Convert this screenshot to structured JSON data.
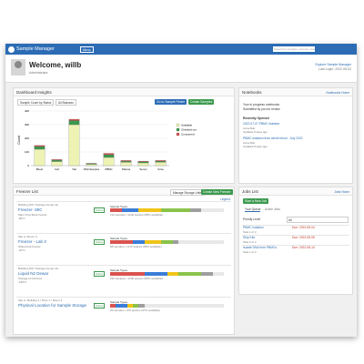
{
  "nav": {
    "brand": "Sample Manager",
    "menu": "Menu",
    "search": "Search for samples, sources, assays..."
  },
  "header": {
    "title": "Welcome, willb",
    "role": "Administrator",
    "explore": "Explore Sample Manager",
    "last_login": "Last Login: 2022-08-02"
  },
  "insights": {
    "title": "Dashboard Insights",
    "select_1": "Sample Count by Status",
    "select_2": "All Statuses",
    "button_finder": "Go to Sample Finder",
    "button_create": "Create Samples",
    "chart": {
      "type": "bar",
      "y_label": "Count",
      "categories": [
        "Blood",
        "Cell",
        "Vial",
        "DNA Samples",
        "PBMC",
        "Plasma",
        "Serum",
        "Urine"
      ],
      "series": [
        {
          "name": "Available",
          "color": "#eef3b4",
          "values": [
            120,
            30,
            300,
            10,
            60,
            25,
            20,
            25
          ]
        },
        {
          "name": "Checked out",
          "color": "#3c9a4f",
          "values": [
            20,
            10,
            30,
            5,
            20,
            8,
            8,
            8
          ]
        },
        {
          "name": "Consumed",
          "color": "#d9534f",
          "values": [
            8,
            5,
            10,
            2,
            10,
            5,
            5,
            5
          ]
        }
      ],
      "ylim": [
        0,
        400
      ],
      "yticks": [
        0,
        100,
        200,
        300,
        400
      ],
      "grid": true
    }
  },
  "notebooks": {
    "title": "Notebooks",
    "home": "Notebooks Home",
    "in_progress": "Your in progress notebooks",
    "submitted": "Submitted by you for review",
    "recent": "Recently Opened",
    "recent_items": [
      {
        "name": "2022-07-07 PBMC isolation",
        "author": "Anna Bob",
        "updated": "Updated 6 days ago"
      },
      {
        "name": "PBMC isolation from whole blood - July 2022",
        "author": "Anna Bob",
        "updated": "Updated 8 days ago"
      }
    ]
  },
  "freezers": {
    "title": "Freezer List",
    "manage": "Manage Storage Units",
    "create": "Create New Freezer",
    "legend": "Legend",
    "types_label": "Sample Types",
    "segment_colors": [
      "#d9534f",
      "#3b7dd8",
      "#f0c419",
      "#8bc34a",
      "#9e9e9e"
    ],
    "rows": [
      {
        "path": "Building 200 / Storage Center 4A",
        "name": "Freezer- 80C",
        "description": "Main Vinyl Book freezer",
        "status": "Active",
        "temp": "-80°C",
        "segments": [
          10,
          15,
          20,
          25,
          10
        ],
        "stats": "110 samples • 1240 spaces (89% available)"
      },
      {
        "path": "Site A / Room 6",
        "name": "Freezer - Lab 3",
        "description": "Shared lab freezer",
        "status": "Active",
        "temp": "-20°C",
        "segments": [
          20,
          10,
          15,
          10,
          5
        ],
        "stats": "68 samples • 1272 spaces (95% available)"
      },
      {
        "path": "Building 200 / Storage Center 4A",
        "name": "Liquid N2 Dewar",
        "description": "Storage of cell lines",
        "status": "Active",
        "temp": "-196°C",
        "segments": [
          30,
          20,
          10,
          20,
          10
        ],
        "stats": "232 samples • 1100 spaces (83% available)"
      },
      {
        "path": "Site A / Building 1 / Floor 1 / Room 3",
        "name": "Physical Location for Sample Storage",
        "description": "",
        "status": "Active",
        "temp": "",
        "segments": [
          5,
          10,
          5,
          5,
          5
        ],
        "stats": "25 samples • 975 spaces (97% available)"
      }
    ]
  },
  "jobs": {
    "title": "Jobs List",
    "home": "Jobs Home",
    "tab_queue": "Your Queue",
    "tab_active": "Active Jobs",
    "priority": "Priority Level",
    "priority_value": "All",
    "start": "Start a New Job",
    "rows": [
      {
        "name": "PBMC isolation",
        "task": "Task 1 of 3",
        "due": "Due: 2022-08-04"
      },
      {
        "name": "Ship Kits",
        "task": "Task 2 of 2",
        "due": "Due: 2022-08-05"
      },
      {
        "name": "Isolate DNA from PBMCs",
        "task": "Task 1 of 4",
        "due": "Due: 2022-08-10"
      }
    ]
  }
}
